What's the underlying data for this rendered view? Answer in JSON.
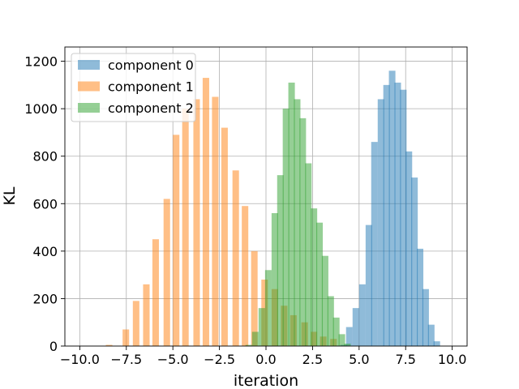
{
  "chart_data": {
    "type": "bar",
    "subtype": "overlaid histogram",
    "xlabel": "iteration",
    "ylabel": "KL",
    "xlim": [
      -10.8,
      10.8
    ],
    "ylim": [
      0,
      1260
    ],
    "xticks": [
      -10.0,
      -7.5,
      -5.0,
      -2.5,
      0.0,
      2.5,
      5.0,
      7.5,
      10.0
    ],
    "xtick_labels": [
      "−10.0",
      "−7.5",
      "−5.0",
      "−2.5",
      "0.0",
      "2.5",
      "5.0",
      "7.5",
      "10.0"
    ],
    "yticks": [
      0,
      200,
      400,
      600,
      800,
      1000,
      1200
    ],
    "ytick_labels": [
      "0",
      "200",
      "400",
      "600",
      "800",
      "1000",
      "1200"
    ],
    "grid": true,
    "legend_position": "top-left",
    "bin_width": 0.35,
    "series": [
      {
        "name": "component 0",
        "color": "#1f77b4",
        "opacity": 0.5,
        "bin_starts": [
          4.0,
          4.3,
          4.65,
          5.0,
          5.35,
          5.65,
          6.0,
          6.3,
          6.6,
          6.9,
          7.2,
          7.5,
          7.8,
          8.1,
          8.4,
          8.7,
          9.0
        ],
        "values": [
          5,
          80,
          160,
          260,
          510,
          860,
          1040,
          1100,
          1160,
          1110,
          1080,
          820,
          710,
          410,
          240,
          90,
          20
        ]
      },
      {
        "name": "component 1",
        "color": "#ff7f0e",
        "opacity": 0.5,
        "bin_starts": [
          -8.6,
          -7.7,
          -7.15,
          -6.6,
          -6.1,
          -5.5,
          -5.0,
          -4.5,
          -3.9,
          -3.4,
          -2.9,
          -2.4,
          -1.8,
          -1.3,
          -0.8,
          -0.25,
          0.3,
          0.8,
          1.3,
          1.9,
          2.4,
          2.9,
          3.45
        ],
        "values": [
          5,
          70,
          190,
          260,
          450,
          620,
          890,
          1000,
          1040,
          1130,
          1050,
          920,
          740,
          590,
          400,
          280,
          240,
          170,
          130,
          100,
          60,
          40,
          30
        ]
      },
      {
        "name": "component 2",
        "color": "#2ca02c",
        "opacity": 0.5,
        "bin_starts": [
          -1.1,
          -0.75,
          -0.4,
          -0.05,
          0.3,
          0.6,
          0.9,
          1.2,
          1.5,
          1.8,
          2.1,
          2.4,
          2.7,
          3.0,
          3.3,
          3.6,
          3.9,
          4.2
        ],
        "values": [
          5,
          60,
          160,
          320,
          560,
          720,
          1000,
          1110,
          1040,
          960,
          770,
          580,
          520,
          380,
          210,
          120,
          50,
          10
        ]
      }
    ]
  }
}
